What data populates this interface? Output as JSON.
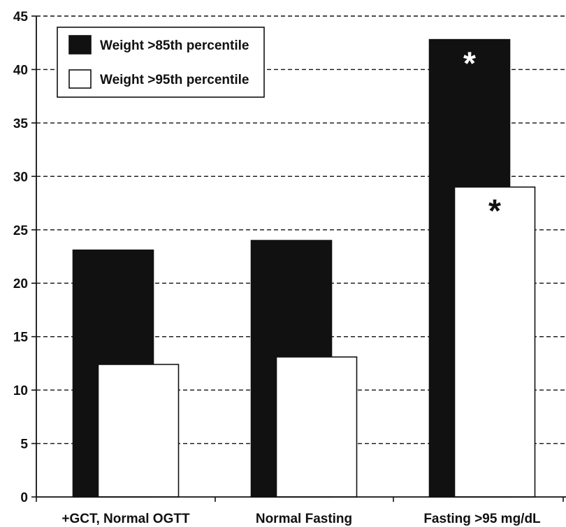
{
  "chart_data": {
    "type": "bar",
    "title": "",
    "xlabel": "",
    "ylabel": "",
    "ylim": [
      0,
      45
    ],
    "yticks": [
      0,
      5,
      10,
      15,
      20,
      25,
      30,
      35,
      40,
      45
    ],
    "grid": "horizontal-dashed",
    "legend_position": "top-left",
    "categories": [
      "+GCT, Normal OGTT",
      "Normal Fasting",
      "Fasting >95 mg/dL"
    ],
    "series": [
      {
        "name": "Weight >85th percentile",
        "values": [
          23.1,
          24.0,
          42.8
        ],
        "color": "#111111"
      },
      {
        "name": "Weight >95th percentile",
        "values": [
          12.4,
          13.1,
          29.0
        ],
        "color": "#ffffff"
      }
    ],
    "annotations": [
      {
        "text": "*",
        "category": "Fasting >95 mg/dL",
        "series": "Weight >85th percentile",
        "color": "#ffffff"
      },
      {
        "text": "*",
        "category": "Fasting >95 mg/dL",
        "series": "Weight >95th percentile",
        "color": "#111111"
      }
    ]
  }
}
